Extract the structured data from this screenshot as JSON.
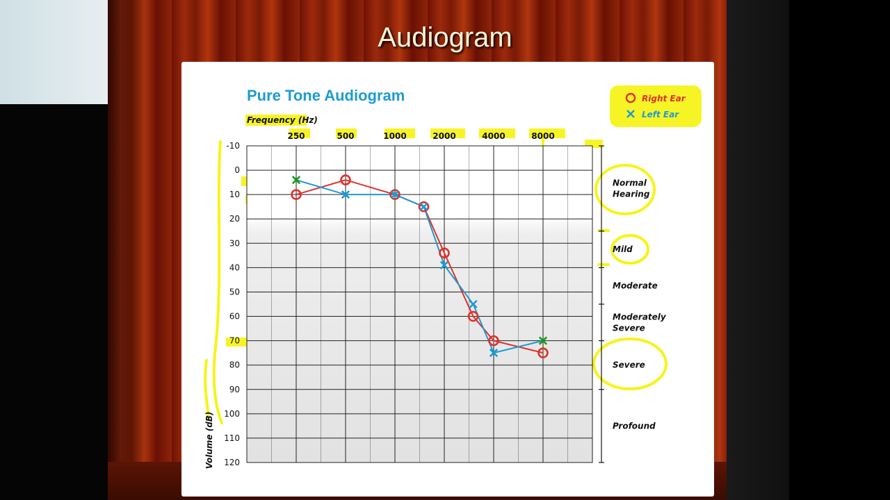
{
  "slide": {
    "title": "Audiogram"
  },
  "chart_data": {
    "type": "line",
    "title": "Pure Tone Audiogram",
    "xlabel": "Frequency (Hz)",
    "ylabel": "Volume (dB)",
    "x_ticks": [
      "250",
      "500",
      "1000",
      "2000",
      "4000",
      "8000"
    ],
    "y_ticks": [
      -10,
      0,
      10,
      20,
      30,
      40,
      50,
      60,
      70,
      80,
      90,
      100,
      110,
      120
    ],
    "ylim": [
      -10,
      120
    ],
    "y_inverted": true,
    "x_scale": "log2",
    "legend_position": "top-right",
    "series": [
      {
        "name": "Right Ear",
        "marker": "circle",
        "color": "#e0302a",
        "points": [
          [
            250,
            10
          ],
          [
            500,
            4
          ],
          [
            1000,
            10
          ],
          [
            1500,
            15
          ],
          [
            2000,
            34
          ],
          [
            3000,
            60
          ],
          [
            4000,
            70
          ],
          [
            8000,
            75
          ]
        ]
      },
      {
        "name": "Left Ear",
        "marker": "x",
        "color": "#1e9bd1",
        "points": [
          [
            250,
            4
          ],
          [
            500,
            10
          ],
          [
            1000,
            10
          ],
          [
            1500,
            15
          ],
          [
            2000,
            39
          ],
          [
            3000,
            55
          ],
          [
            4000,
            75
          ],
          [
            8000,
            70
          ]
        ]
      }
    ],
    "categories": [
      {
        "label": "Normal Hearing",
        "range": [
          -10,
          25
        ]
      },
      {
        "label": "Mild",
        "range": [
          25,
          40
        ]
      },
      {
        "label": "Moderate",
        "range": [
          40,
          55
        ]
      },
      {
        "label": "Moderately Severe",
        "range": [
          55,
          70
        ]
      },
      {
        "label": "Severe",
        "range": [
          70,
          90
        ]
      },
      {
        "label": "Profound",
        "range": [
          90,
          120
        ]
      }
    ],
    "annotation_color": "#f6f200",
    "annotation_marker_color": "#1a9a1a"
  }
}
